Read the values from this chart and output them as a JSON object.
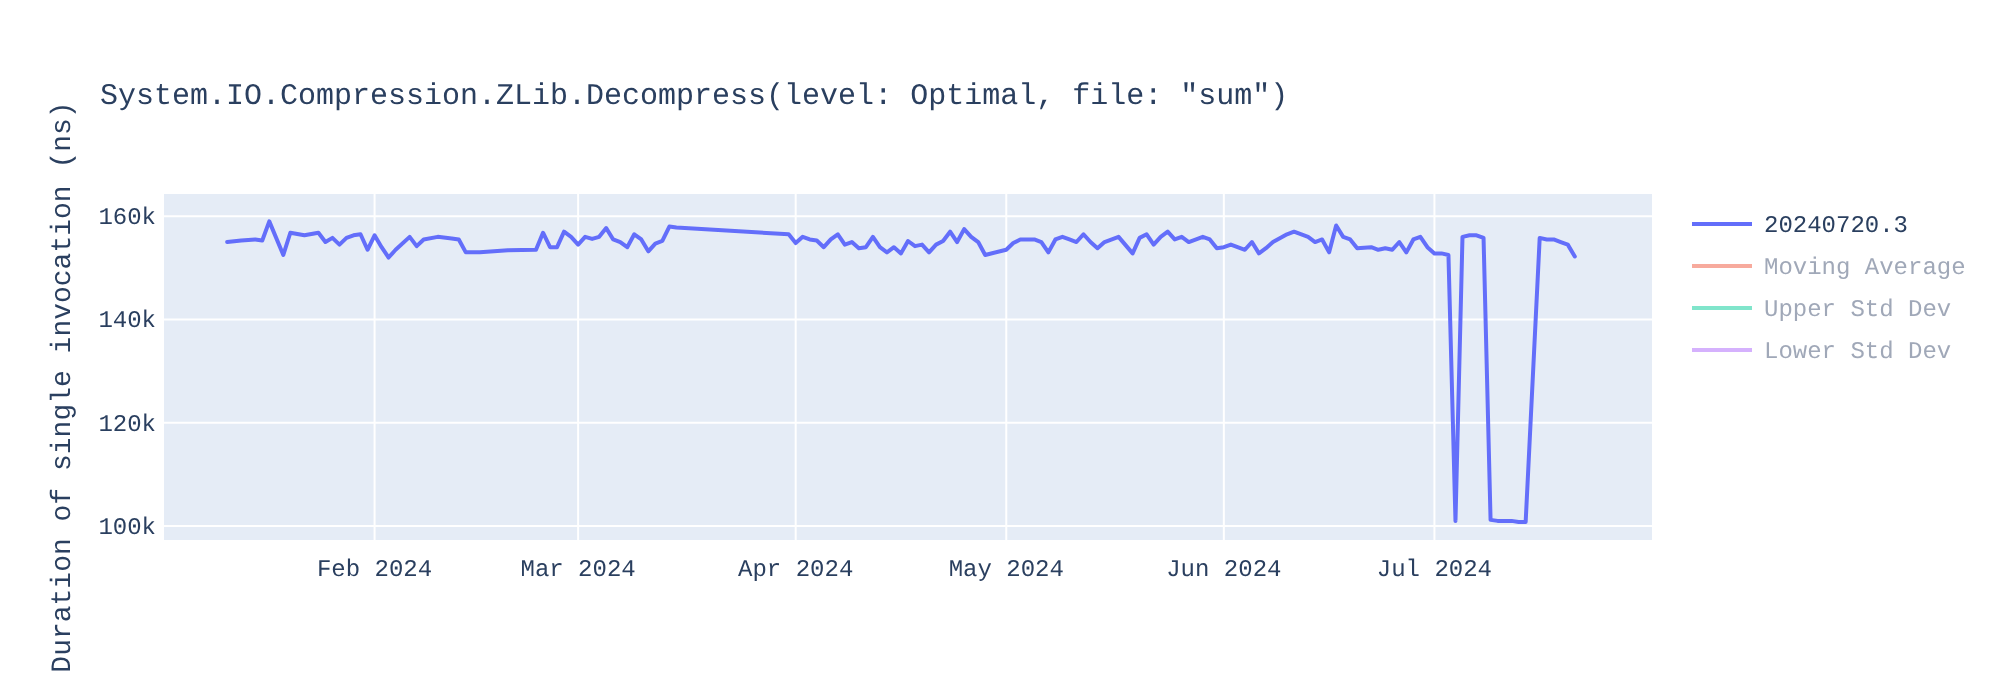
{
  "chart_data": {
    "type": "line",
    "title": "System.IO.Compression.ZLib.Decompress(level: Optimal, file: \"sum\")",
    "ylabel": "Duration of single invocation (ns)",
    "xlim": [
      "2024-01-02",
      "2024-08-01"
    ],
    "xticks": [
      {
        "value": "2024-02-01",
        "label": "Feb 2024"
      },
      {
        "value": "2024-03-01",
        "label": "Mar 2024"
      },
      {
        "value": "2024-04-01",
        "label": "Apr 2024"
      },
      {
        "value": "2024-05-01",
        "label": "May 2024"
      },
      {
        "value": "2024-06-01",
        "label": "Jun 2024"
      },
      {
        "value": "2024-07-01",
        "label": "Jul 2024"
      }
    ],
    "ylim": [
      97300,
      164300
    ],
    "yticks": [
      {
        "value": 100000,
        "label": "100k"
      },
      {
        "value": 120000,
        "label": "120k"
      },
      {
        "value": 140000,
        "label": "140k"
      },
      {
        "value": 160000,
        "label": "160k"
      }
    ],
    "grid": true,
    "legend": "top right",
    "line_style": "solid",
    "series": [
      {
        "name": "20240720.3",
        "color": "#636efa",
        "x": [
          "2024-01-11",
          "2024-01-13",
          "2024-01-15",
          "2024-01-16",
          "2024-01-17",
          "2024-01-19",
          "2024-01-20",
          "2024-01-22",
          "2024-01-24",
          "2024-01-25",
          "2024-01-26",
          "2024-01-27",
          "2024-01-28",
          "2024-01-29",
          "2024-01-30",
          "2024-01-31",
          "2024-02-01",
          "2024-02-02",
          "2024-02-03",
          "2024-02-04",
          "2024-02-06",
          "2024-02-07",
          "2024-02-08",
          "2024-02-10",
          "2024-02-12",
          "2024-02-13",
          "2024-02-14",
          "2024-02-16",
          "2024-02-20",
          "2024-02-24",
          "2024-02-25",
          "2024-02-26",
          "2024-02-27",
          "2024-02-28",
          "2024-02-29",
          "2024-03-01",
          "2024-03-02",
          "2024-03-03",
          "2024-03-04",
          "2024-03-05",
          "2024-03-06",
          "2024-03-07",
          "2024-03-08",
          "2024-03-09",
          "2024-03-10",
          "2024-03-11",
          "2024-03-12",
          "2024-03-13",
          "2024-03-14",
          "2024-03-15",
          "2024-03-31",
          "2024-04-01",
          "2024-04-02",
          "2024-04-03",
          "2024-04-04",
          "2024-04-05",
          "2024-04-06",
          "2024-04-07",
          "2024-04-08",
          "2024-04-09",
          "2024-04-10",
          "2024-04-11",
          "2024-04-12",
          "2024-04-13",
          "2024-04-14",
          "2024-04-15",
          "2024-04-16",
          "2024-04-17",
          "2024-04-18",
          "2024-04-19",
          "2024-04-20",
          "2024-04-21",
          "2024-04-22",
          "2024-04-23",
          "2024-04-24",
          "2024-04-25",
          "2024-04-26",
          "2024-04-27",
          "2024-04-28",
          "2024-05-01",
          "2024-05-02",
          "2024-05-03",
          "2024-05-04",
          "2024-05-05",
          "2024-05-06",
          "2024-05-07",
          "2024-05-08",
          "2024-05-09",
          "2024-05-10",
          "2024-05-11",
          "2024-05-12",
          "2024-05-13",
          "2024-05-14",
          "2024-05-15",
          "2024-05-17",
          "2024-05-19",
          "2024-05-20",
          "2024-05-21",
          "2024-05-22",
          "2024-05-23",
          "2024-05-24",
          "2024-05-25",
          "2024-05-26",
          "2024-05-27",
          "2024-05-29",
          "2024-05-30",
          "2024-05-31",
          "2024-06-01",
          "2024-06-02",
          "2024-06-04",
          "2024-06-05",
          "2024-06-06",
          "2024-06-07",
          "2024-06-08",
          "2024-06-10",
          "2024-06-11",
          "2024-06-13",
          "2024-06-14",
          "2024-06-15",
          "2024-06-16",
          "2024-06-17",
          "2024-06-18",
          "2024-06-19",
          "2024-06-20",
          "2024-06-22",
          "2024-06-23",
          "2024-06-24",
          "2024-06-25",
          "2024-06-26",
          "2024-06-27",
          "2024-06-28",
          "2024-06-29",
          "2024-06-30",
          "2024-07-01",
          "2024-07-02",
          "2024-07-03",
          "2024-07-04",
          "2024-07-05",
          "2024-07-06",
          "2024-07-07",
          "2024-07-08",
          "2024-07-09",
          "2024-07-10",
          "2024-07-12",
          "2024-07-13",
          "2024-07-14",
          "2024-07-16",
          "2024-07-17",
          "2024-07-18",
          "2024-07-19",
          "2024-07-20",
          "2024-07-21"
        ],
        "values": [
          155000,
          155300,
          155500,
          155300,
          159000,
          152500,
          156800,
          156300,
          156800,
          155000,
          155800,
          154500,
          155800,
          156300,
          156500,
          153500,
          156300,
          154000,
          152000,
          153500,
          156000,
          154200,
          155500,
          156000,
          155700,
          155500,
          153000,
          153000,
          153400,
          153500,
          156800,
          154000,
          154000,
          157000,
          156000,
          154500,
          156000,
          155600,
          156000,
          157700,
          155500,
          155000,
          154000,
          156500,
          155500,
          153200,
          154700,
          155200,
          158000,
          157800,
          156500,
          154800,
          156000,
          155500,
          155300,
          154000,
          155500,
          156500,
          154500,
          155000,
          153800,
          154000,
          156000,
          154000,
          153000,
          154000,
          152800,
          155200,
          154200,
          154500,
          153000,
          154500,
          155200,
          157000,
          155000,
          157500,
          156000,
          155000,
          152500,
          153500,
          154800,
          155500,
          155500,
          155500,
          155000,
          153000,
          155500,
          156000,
          155500,
          155000,
          156500,
          155000,
          153800,
          155000,
          156000,
          152800,
          155800,
          156500,
          154500,
          156000,
          157000,
          155500,
          156000,
          155000,
          156000,
          155500,
          153800,
          154000,
          154500,
          153500,
          155000,
          152800,
          153800,
          155000,
          156500,
          157000,
          156000,
          155000,
          155500,
          153000,
          158200,
          156000,
          155500,
          153800,
          154000,
          153500,
          153800,
          153500,
          155000,
          153000,
          155500,
          156000,
          154000,
          152800,
          152800,
          152500,
          101000,
          156000,
          156300,
          156300,
          155800,
          101200,
          101000,
          101000,
          100800,
          100800,
          155800,
          155500,
          155500,
          155000,
          154500,
          152200
        ]
      },
      {
        "name": "Moving Average",
        "color": "#f7aa9d"
      },
      {
        "name": "Upper Std Dev",
        "color": "#80e5cb"
      },
      {
        "name": "Lower Std Dev",
        "color": "#d5b1fd"
      }
    ]
  }
}
